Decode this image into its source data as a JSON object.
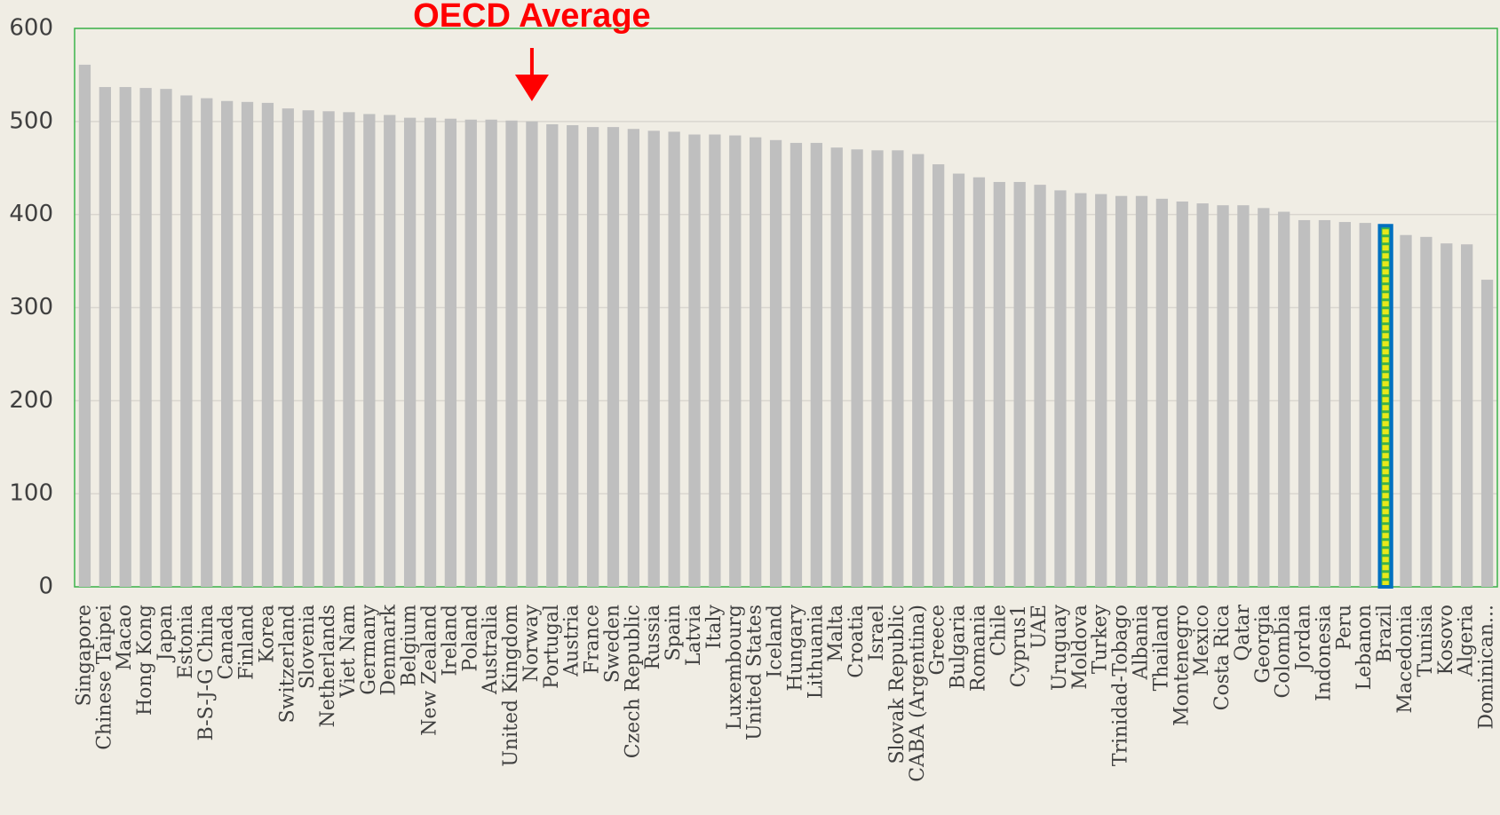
{
  "chart_data": {
    "type": "bar",
    "categories": [
      "Singapore",
      "Chinese Taipei",
      "Macao",
      "Hong Kong",
      "Japan",
      "Estonia",
      "B-S-J-G China",
      "Canada",
      "Finland",
      "Korea",
      "Switzerland",
      "Slovenia",
      "Netherlands",
      "Viet Nam",
      "Germany",
      "Denmark",
      "Belgium",
      "New Zealand",
      "Ireland",
      "Poland",
      "Australia",
      "United Kingdom",
      "Norway",
      "Portugal",
      "Austria",
      "France",
      "Sweden",
      "Czech Republic",
      "Russia",
      "Spain",
      "Latvia",
      "Italy",
      "Luxembourg",
      "United States",
      "Iceland",
      "Hungary",
      "Lithuania",
      "Malta",
      "Croatia",
      "Israel",
      "Slovak Republic",
      "CABA (Argentina)",
      "Greece",
      "Bulgaria",
      "Romania",
      "Chile",
      "Cyprus1",
      "UAE",
      "Uruguay",
      "Moldova",
      "Turkey",
      "Trinidad-Tobago",
      "Albania",
      "Thailand",
      "Montenegro",
      "Mexico",
      "Costa Rica",
      "Qatar",
      "Georgia",
      "Colombia",
      "Jordan",
      "Indonesia",
      "Peru",
      "Lebanon",
      "Brazil",
      "Macedonia",
      "Tunisia",
      "Kosovo",
      "Algeria",
      "Dominican..."
    ],
    "values": [
      561,
      537,
      537,
      536,
      535,
      528,
      525,
      522,
      521,
      520,
      514,
      512,
      511,
      510,
      508,
      507,
      504,
      504,
      503,
      502,
      502,
      501,
      500,
      497,
      496,
      494,
      494,
      492,
      490,
      489,
      486,
      486,
      485,
      483,
      480,
      477,
      477,
      472,
      470,
      469,
      469,
      465,
      454,
      444,
      440,
      435,
      435,
      432,
      426,
      423,
      422,
      420,
      420,
      417,
      414,
      412,
      410,
      410,
      407,
      403,
      394,
      394,
      392,
      391,
      388,
      378,
      376,
      369,
      368,
      330
    ],
    "color": "#bfbfbf",
    "highlight": {
      "category": "Brazil",
      "fill": "#e8e81a",
      "stroke": "#0070c0"
    },
    "annotation": {
      "text": "OECD Average",
      "category": "Norway",
      "color": "#ff0000"
    },
    "ylim": [
      0,
      600
    ],
    "yticks": [
      0,
      100,
      200,
      300,
      400,
      500,
      600
    ],
    "grid": true
  }
}
